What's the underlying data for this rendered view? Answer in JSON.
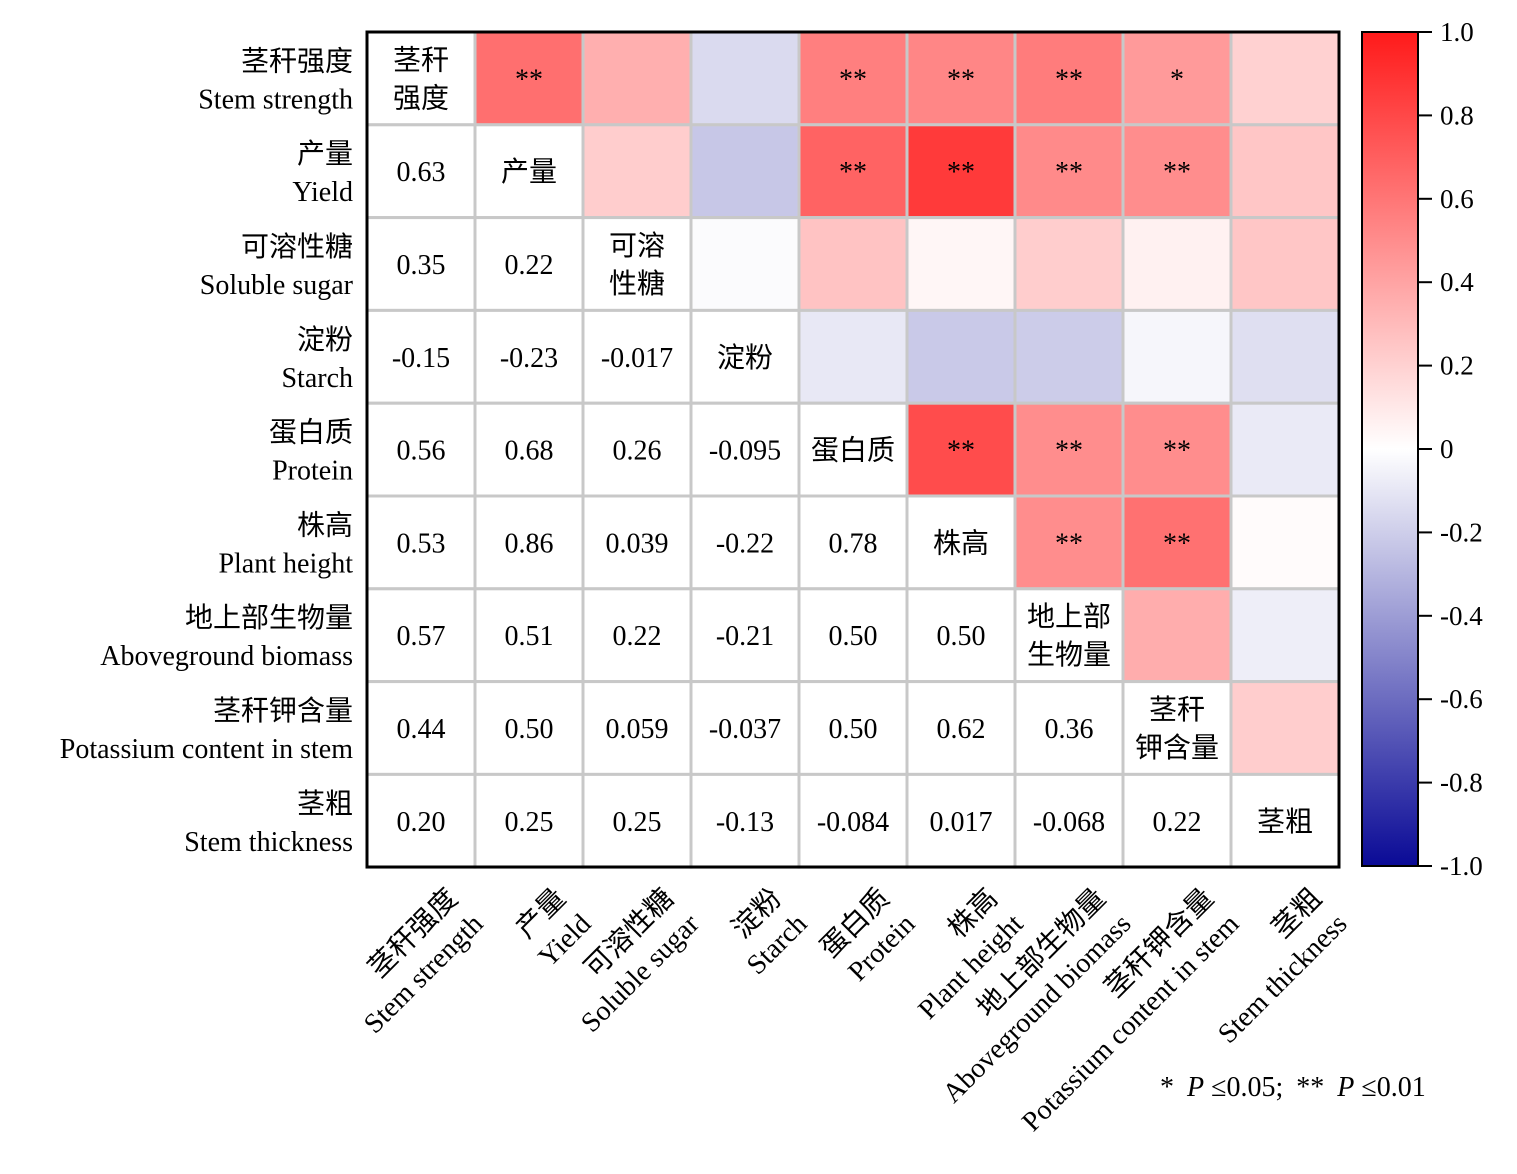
{
  "chart_data": {
    "type": "heatmap",
    "variables": [
      {
        "zh": "茎秆强度",
        "en": "Stem strength",
        "diag": [
          "茎秆",
          "强度"
        ]
      },
      {
        "zh": "产量",
        "en": "Yield",
        "diag": [
          "产量"
        ]
      },
      {
        "zh": "可溶性糖",
        "en": "Soluble sugar",
        "diag": [
          "可溶",
          "性糖"
        ]
      },
      {
        "zh": "淀粉",
        "en": "Starch",
        "diag": [
          "淀粉"
        ]
      },
      {
        "zh": "蛋白质",
        "en": "Protein",
        "diag": [
          "蛋白质"
        ]
      },
      {
        "zh": "株高",
        "en": "Plant height",
        "diag": [
          "株高"
        ]
      },
      {
        "zh": "地上部生物量",
        "en": "Aboveground biomass",
        "diag": [
          "地上部",
          "生物量"
        ]
      },
      {
        "zh": "茎秆钾含量",
        "en": "Potassium content in stem",
        "diag": [
          "茎秆",
          "钾含量"
        ]
      },
      {
        "zh": "茎粗",
        "en": "Stem thickness",
        "diag": [
          "茎粗"
        ]
      }
    ],
    "lower_triangle_labels": [
      [],
      [
        "0.63"
      ],
      [
        "0.35",
        "0.22"
      ],
      [
        "-0.15",
        "-0.23",
        "-0.017"
      ],
      [
        "0.56",
        "0.68",
        "0.26",
        "-0.095"
      ],
      [
        "0.53",
        "0.86",
        "0.039",
        "-0.22",
        "0.78"
      ],
      [
        "0.57",
        "0.51",
        "0.22",
        "-0.21",
        "0.50",
        "0.50"
      ],
      [
        "0.44",
        "0.50",
        "0.059",
        "-0.037",
        "0.50",
        "0.62",
        "0.36"
      ],
      [
        "0.20",
        "0.25",
        "0.25",
        "-0.13",
        "-0.084",
        "0.017",
        "-0.068",
        "0.22"
      ]
    ],
    "significance": [
      [
        "",
        "**",
        "",
        "",
        "**",
        "**",
        "**",
        "*",
        ""
      ],
      [
        "",
        "",
        "",
        "",
        "**",
        "**",
        "**",
        "**",
        ""
      ],
      [
        "",
        "",
        "",
        "",
        "",
        "",
        "",
        "",
        ""
      ],
      [
        "",
        "",
        "",
        "",
        "",
        "",
        "",
        "",
        ""
      ],
      [
        "",
        "",
        "",
        "",
        "",
        "**",
        "**",
        "**",
        ""
      ],
      [
        "",
        "",
        "",
        "",
        "",
        "",
        "**",
        "**",
        ""
      ],
      [
        "",
        "",
        "",
        "",
        "",
        "",
        "",
        "",
        ""
      ],
      [
        "",
        "",
        "",
        "",
        "",
        "",
        "",
        "",
        ""
      ],
      [
        "",
        "",
        "",
        "",
        "",
        "",
        "",
        "",
        ""
      ]
    ],
    "color_scale": {
      "min": -1.0,
      "max": 1.0,
      "low_color": "#0a0a96",
      "mid_color": "#ffffff",
      "high_color": "#ff1a1a",
      "ticks": [
        "1.0",
        "0.8",
        "0.6",
        "0.4",
        "0.2",
        "0",
        "-0.2",
        "-0.4",
        "-0.6",
        "-0.8",
        "-1.0"
      ]
    },
    "note": {
      "star1": "*",
      "p1": "P",
      "cond1": "≤0.05;",
      "star2": "**",
      "p2": "P",
      "cond2": "≤0.01"
    }
  }
}
